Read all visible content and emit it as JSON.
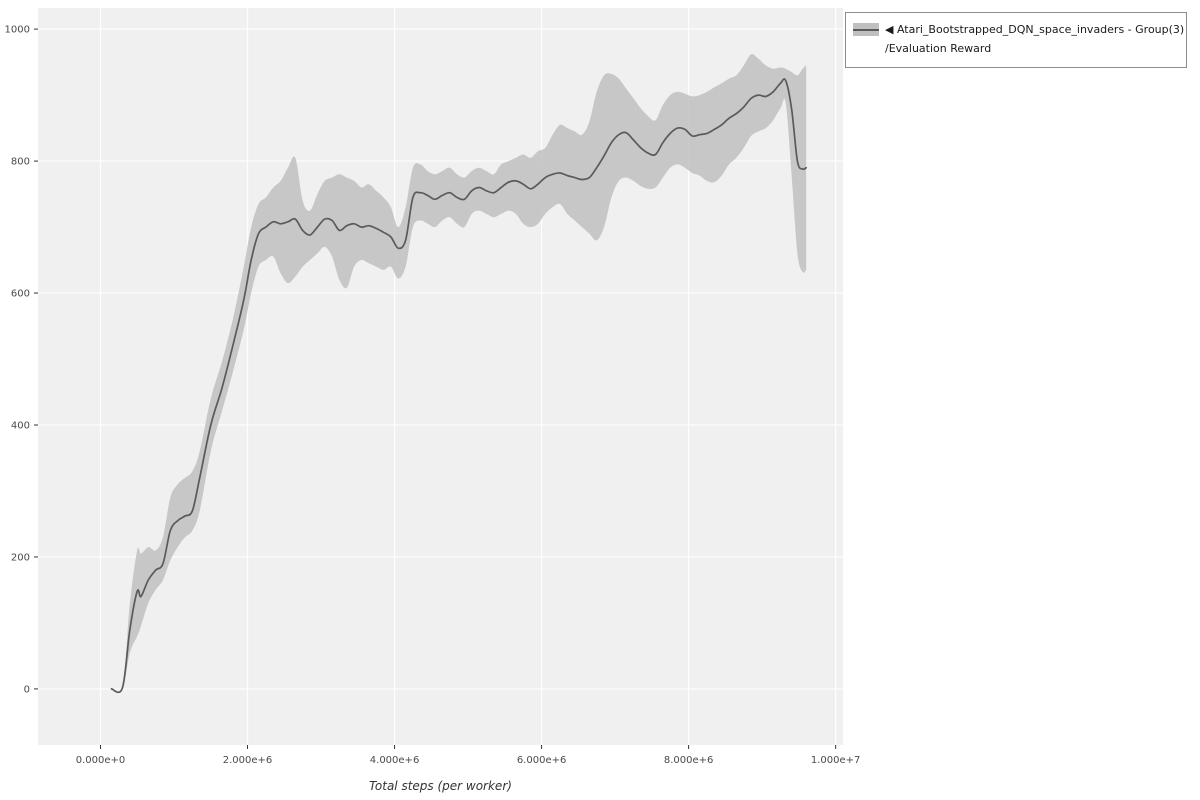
{
  "legend": {
    "marker": "◀",
    "series_name": "Atari_Bootstrapped_DQN_space_invaders - Group(3)",
    "metric_name": "/Evaluation Reward"
  },
  "chart_data": {
    "type": "line",
    "title": "",
    "xlabel": "Total steps (per worker)",
    "ylabel": "",
    "legend_position": "outside-right",
    "grid": true,
    "panel_bg": "#f0f0f0",
    "grid_color": "#ffffff",
    "tick_color": "#333333",
    "tick_label_color": "#4a4a4a",
    "axis_title_color": "#333333",
    "xlim": [
      -850000,
      10100000
    ],
    "ylim": [
      -85,
      1032
    ],
    "x_ticks": [
      {
        "value": 0,
        "label": "0.000e+0"
      },
      {
        "value": 2000000,
        "label": "2.000e+6"
      },
      {
        "value": 4000000,
        "label": "4.000e+6"
      },
      {
        "value": 6000000,
        "label": "6.000e+6"
      },
      {
        "value": 8000000,
        "label": "8.000e+6"
      },
      {
        "value": 10000000,
        "label": "1.000e+7"
      }
    ],
    "y_ticks": [
      {
        "value": 0,
        "label": "0"
      },
      {
        "value": 200,
        "label": "200"
      },
      {
        "value": 400,
        "label": "400"
      },
      {
        "value": 600,
        "label": "600"
      },
      {
        "value": 800,
        "label": "800"
      },
      {
        "value": 1000,
        "label": "1000"
      }
    ],
    "series": [
      {
        "name": "Atari_Bootstrapped_DQN_space_invaders - Group(3)/Evaluation Reward",
        "line_color": "#5a5a5a",
        "band_color": "#bfbfbf",
        "band_opacity": 0.85,
        "x": [
          150000,
          300000,
          400000,
          500000,
          550000,
          650000,
          750000,
          850000,
          950000,
          1050000,
          1150000,
          1250000,
          1350000,
          1500000,
          1650000,
          1800000,
          1950000,
          2050000,
          2150000,
          2250000,
          2350000,
          2450000,
          2550000,
          2650000,
          2750000,
          2850000,
          2950000,
          3050000,
          3150000,
          3250000,
          3350000,
          3450000,
          3550000,
          3650000,
          3750000,
          3850000,
          3950000,
          4050000,
          4150000,
          4250000,
          4350000,
          4450000,
          4550000,
          4650000,
          4750000,
          4850000,
          4950000,
          5050000,
          5150000,
          5250000,
          5350000,
          5450000,
          5550000,
          5650000,
          5750000,
          5850000,
          5950000,
          6050000,
          6150000,
          6250000,
          6350000,
          6450000,
          6550000,
          6650000,
          6750000,
          6850000,
          6950000,
          7050000,
          7150000,
          7250000,
          7350000,
          7450000,
          7550000,
          7650000,
          7750000,
          7850000,
          7950000,
          8050000,
          8150000,
          8250000,
          8350000,
          8450000,
          8550000,
          8650000,
          8750000,
          8850000,
          8950000,
          9050000,
          9150000,
          9250000,
          9320000,
          9400000,
          9480000,
          9550000,
          9600000
        ],
        "mean": [
          0,
          2,
          90,
          148,
          140,
          165,
          180,
          190,
          240,
          255,
          262,
          270,
          320,
          400,
          455,
          520,
          590,
          650,
          690,
          700,
          708,
          705,
          708,
          712,
          695,
          688,
          700,
          712,
          710,
          695,
          702,
          705,
          700,
          702,
          698,
          692,
          685,
          668,
          680,
          745,
          752,
          748,
          742,
          748,
          752,
          745,
          742,
          755,
          760,
          755,
          752,
          760,
          768,
          770,
          765,
          758,
          765,
          775,
          780,
          782,
          778,
          775,
          772,
          775,
          790,
          808,
          828,
          840,
          843,
          832,
          820,
          812,
          810,
          828,
          842,
          850,
          848,
          838,
          840,
          842,
          848,
          855,
          865,
          872,
          882,
          895,
          900,
          898,
          905,
          918,
          922,
          880,
          800,
          788,
          790
        ],
        "lower": [
          0,
          0,
          55,
          80,
          95,
          130,
          150,
          165,
          195,
          215,
          230,
          240,
          270,
          360,
          420,
          480,
          545,
          600,
          640,
          650,
          655,
          630,
          615,
          625,
          640,
          650,
          660,
          670,
          655,
          620,
          608,
          640,
          650,
          645,
          640,
          635,
          640,
          622,
          640,
          700,
          710,
          705,
          700,
          710,
          715,
          705,
          700,
          720,
          725,
          720,
          715,
          720,
          725,
          720,
          705,
          700,
          705,
          720,
          730,
          735,
          720,
          710,
          700,
          690,
          680,
          700,
          745,
          770,
          775,
          770,
          762,
          758,
          760,
          775,
          790,
          795,
          790,
          782,
          778,
          770,
          768,
          778,
          795,
          805,
          820,
          838,
          845,
          850,
          862,
          880,
          888,
          780,
          660,
          632,
          635
        ],
        "upper": [
          0,
          5,
          130,
          210,
          205,
          215,
          210,
          230,
          290,
          310,
          320,
          330,
          360,
          440,
          495,
          560,
          640,
          700,
          735,
          745,
          760,
          770,
          790,
          805,
          740,
          725,
          750,
          770,
          775,
          780,
          775,
          770,
          760,
          765,
          755,
          745,
          730,
          700,
          730,
          790,
          795,
          785,
          780,
          785,
          790,
          780,
          775,
          785,
          790,
          785,
          780,
          795,
          800,
          805,
          810,
          805,
          815,
          820,
          840,
          855,
          850,
          845,
          840,
          860,
          905,
          930,
          932,
          925,
          910,
          895,
          880,
          868,
          862,
          885,
          900,
          905,
          902,
          898,
          900,
          905,
          912,
          918,
          925,
          930,
          945,
          962,
          955,
          945,
          940,
          942,
          940,
          935,
          930,
          940,
          945
        ]
      }
    ]
  }
}
